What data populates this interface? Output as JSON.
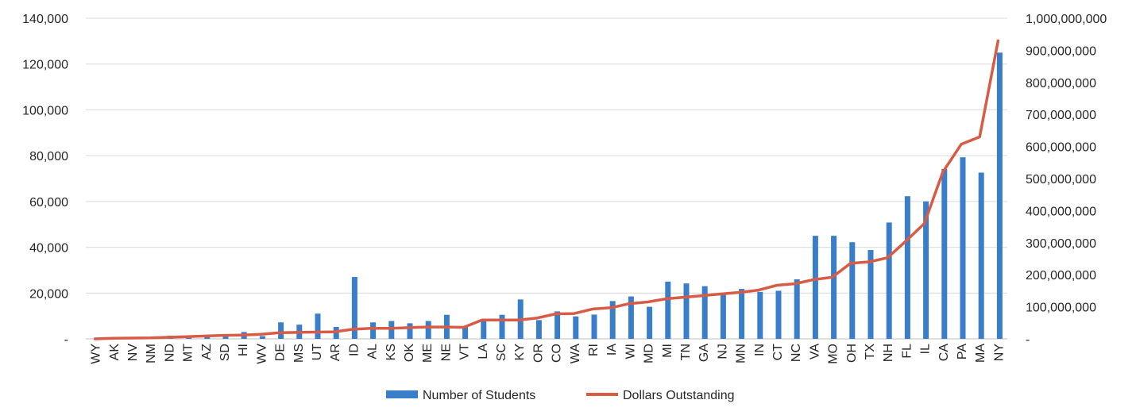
{
  "chart_data": {
    "type": "bar-line-combo",
    "title": "",
    "grid": true,
    "legend_position": "bottom",
    "categories": [
      "WY",
      "AK",
      "NV",
      "NM",
      "ND",
      "MT",
      "AZ",
      "SD",
      "HI",
      "WV",
      "DE",
      "MS",
      "UT",
      "AR",
      "ID",
      "AL",
      "KS",
      "OK",
      "ME",
      "NE",
      "VT",
      "LA",
      "SC",
      "KY",
      "OR",
      "CO",
      "WA",
      "RI",
      "IA",
      "WI",
      "MD",
      "MI",
      "TN",
      "GA",
      "NJ",
      "MN",
      "IN",
      "CT",
      "NC",
      "VA",
      "MO",
      "OH",
      "TX",
      "NH",
      "FL",
      "IL",
      "CA",
      "PA",
      "MA",
      "NY"
    ],
    "y_left": {
      "ylim": [
        0,
        140000
      ],
      "ticks": [
        0,
        20000,
        40000,
        60000,
        80000,
        100000,
        120000,
        140000
      ],
      "tick_labels": [
        "-",
        "20,000",
        "40,000",
        "60,000",
        "80,000",
        "100,000",
        "120,000",
        "140,000"
      ]
    },
    "y_right": {
      "ylim": [
        0,
        1000000000
      ],
      "ticks": [
        0,
        100000000,
        200000000,
        300000000,
        400000000,
        500000000,
        600000000,
        700000000,
        800000000,
        900000000,
        1000000000
      ],
      "tick_labels": [
        "-",
        "100,000,000",
        "200,000,000",
        "300,000,000",
        "400,000,000",
        "500,000,000",
        "600,000,000",
        "700,000,000",
        "800,000,000",
        "900,000,000",
        "1,000,000,000"
      ]
    },
    "series": [
      {
        "name": "Number of Students",
        "type": "bar",
        "axis": "left",
        "color": "#3a7dc9",
        "values": [
          100,
          300,
          400,
          400,
          1400,
          800,
          1000,
          1800,
          3000,
          1200,
          7200,
          6200,
          11000,
          5200,
          27000,
          7200,
          7800,
          6800,
          7800,
          10500,
          5500,
          7700,
          10500,
          17200,
          8200,
          12000,
          9800,
          10600,
          16500,
          18500,
          14000,
          25000,
          24200,
          23000,
          19800,
          21800,
          20500,
          21000,
          26000,
          45000,
          45000,
          42200,
          38800,
          50800,
          62300,
          60000,
          74200,
          79300,
          72600,
          125000
        ]
      },
      {
        "name": "Dollars Outstanding",
        "type": "line",
        "axis": "right",
        "color": "#d85b45",
        "values": [
          0,
          2000000,
          2500000,
          3000000,
          5000000,
          7000000,
          9000000,
          11000000,
          12000000,
          14000000,
          19000000,
          20000000,
          21000000,
          22000000,
          30000000,
          33000000,
          33000000,
          35000000,
          37000000,
          37000000,
          36000000,
          59000000,
          59000000,
          59000000,
          65000000,
          78000000,
          79000000,
          93000000,
          97000000,
          110000000,
          115000000,
          125000000,
          130000000,
          135000000,
          140000000,
          145000000,
          152000000,
          167000000,
          172000000,
          185000000,
          192000000,
          236000000,
          240000000,
          253000000,
          305000000,
          360000000,
          520000000,
          607000000,
          630000000,
          930000000
        ]
      }
    ]
  }
}
